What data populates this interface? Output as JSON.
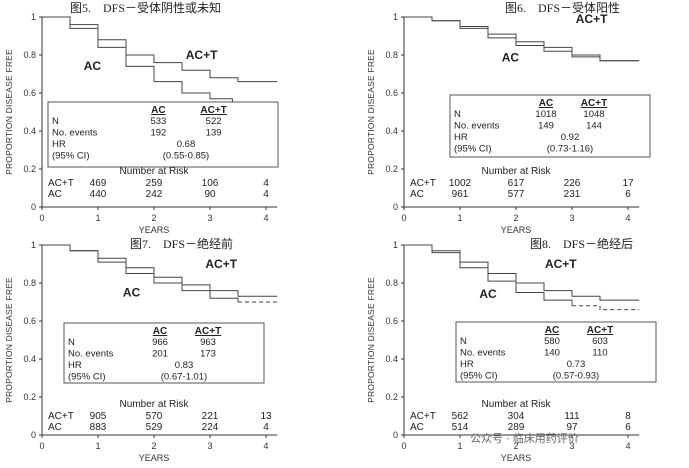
{
  "watermark": "公众号 · 临床用药评价",
  "chart_data": [
    {
      "type": "line",
      "title": "图5.　DFS－受体阴性或未知",
      "xlabel": "YEARS",
      "ylabel": "PROPORTION DISEASE FREE",
      "xlim": [
        0,
        4.2
      ],
      "ylim": [
        0,
        1
      ],
      "x_ticks": [
        "0",
        "1",
        "2",
        "3",
        "4"
      ],
      "y_ticks": [
        "0",
        "0.2",
        "0.4",
        "0.6",
        "0.8",
        "1"
      ],
      "series": [
        {
          "name": "AC+T",
          "label_pos": "upper",
          "points": [
            [
              0,
              1.0
            ],
            [
              0.5,
              0.96
            ],
            [
              1,
              0.88
            ],
            [
              1.5,
              0.8
            ],
            [
              2,
              0.76
            ],
            [
              2.5,
              0.72
            ],
            [
              3,
              0.68
            ],
            [
              3.5,
              0.66
            ],
            [
              4.2,
              0.66
            ]
          ]
        },
        {
          "name": "AC",
          "label_pos": "lower",
          "points": [
            [
              0,
              1.0
            ],
            [
              0.5,
              0.94
            ],
            [
              1,
              0.84
            ],
            [
              1.5,
              0.74
            ],
            [
              2,
              0.66
            ],
            [
              2.5,
              0.6
            ],
            [
              3,
              0.57
            ],
            [
              3.4,
              0.55
            ],
            [
              4.2,
              0.55
            ]
          ],
          "dash_from": 3.5
        }
      ],
      "stats": {
        "headers": [
          "AC",
          "AC+T"
        ],
        "rows": [
          {
            "label": "N",
            "ac": "533",
            "act": "522"
          },
          {
            "label": "No. events",
            "ac": "192",
            "act": "139"
          },
          {
            "label": "HR",
            "value": "0.68"
          },
          {
            "label": "(95% CI)",
            "value": "(0.55-0.85)"
          }
        ]
      },
      "risk": {
        "title": "Number at Risk",
        "rows": [
          {
            "label": "AC+T",
            "values": [
              "469",
              "259",
              "106",
              "4"
            ]
          },
          {
            "label": "AC",
            "values": [
              "440",
              "242",
              "90",
              "4"
            ]
          }
        ]
      }
    },
    {
      "type": "line",
      "title": "图6.　DFS－受体阳性",
      "xlabel": "YEARS",
      "ylabel": "PROPORTION DISEASE FREE",
      "xlim": [
        0,
        4.2
      ],
      "ylim": [
        0,
        1
      ],
      "x_ticks": [
        "0",
        "1",
        "2",
        "3",
        "4"
      ],
      "y_ticks": [
        "0",
        "0.2",
        "0.4",
        "0.6",
        "0.8",
        "1"
      ],
      "series": [
        {
          "name": "AC+T",
          "label_pos": "upper",
          "points": [
            [
              0,
              1.0
            ],
            [
              0.5,
              0.98
            ],
            [
              1,
              0.95
            ],
            [
              1.5,
              0.91
            ],
            [
              2,
              0.87
            ],
            [
              2.5,
              0.84
            ],
            [
              3,
              0.8
            ],
            [
              3.5,
              0.77
            ],
            [
              4.2,
              0.77
            ]
          ]
        },
        {
          "name": "AC",
          "label_pos": "lower",
          "points": [
            [
              0,
              1.0
            ],
            [
              0.5,
              0.98
            ],
            [
              1,
              0.94
            ],
            [
              1.5,
              0.89
            ],
            [
              2,
              0.85
            ],
            [
              2.5,
              0.82
            ],
            [
              3,
              0.79
            ],
            [
              3.5,
              0.77
            ],
            [
              4.2,
              0.77
            ]
          ]
        }
      ],
      "stats": {
        "headers": [
          "AC",
          "AC+T"
        ],
        "rows": [
          {
            "label": "N",
            "ac": "1018",
            "act": "1048"
          },
          {
            "label": "No. events",
            "ac": "149",
            "act": "144"
          },
          {
            "label": "HR",
            "value": "0.92"
          },
          {
            "label": "(95% CI)",
            "value": "(0.73-1.16)"
          }
        ]
      },
      "risk": {
        "title": "Number at Risk",
        "rows": [
          {
            "label": "AC+T",
            "values": [
              "1002",
              "617",
              "226",
              "17"
            ]
          },
          {
            "label": "AC",
            "values": [
              "961",
              "577",
              "231",
              "6"
            ]
          }
        ]
      }
    },
    {
      "type": "line",
      "title": "图7.　DFS－绝经前",
      "xlabel": "YEARS",
      "ylabel": "PROPORTION DISEASE FREE",
      "xlim": [
        0,
        4.2
      ],
      "ylim": [
        0,
        1
      ],
      "x_ticks": [
        "0",
        "1",
        "2",
        "3",
        "4"
      ],
      "y_ticks": [
        "0",
        "0.2",
        "0.4",
        "0.6",
        "0.8",
        "1"
      ],
      "series": [
        {
          "name": "AC+T",
          "label_pos": "upper",
          "points": [
            [
              0,
              1.0
            ],
            [
              0.5,
              0.97
            ],
            [
              1,
              0.93
            ],
            [
              1.5,
              0.88
            ],
            [
              2,
              0.83
            ],
            [
              2.5,
              0.79
            ],
            [
              3,
              0.76
            ],
            [
              3.5,
              0.73
            ],
            [
              4.2,
              0.73
            ]
          ]
        },
        {
          "name": "AC",
          "label_pos": "lower",
          "points": [
            [
              0,
              1.0
            ],
            [
              0.5,
              0.97
            ],
            [
              1,
              0.91
            ],
            [
              1.5,
              0.85
            ],
            [
              2,
              0.8
            ],
            [
              2.5,
              0.76
            ],
            [
              3,
              0.72
            ],
            [
              3.5,
              0.7
            ],
            [
              4.2,
              0.7
            ]
          ],
          "dash_from": 3.5
        }
      ],
      "stats": {
        "headers": [
          "AC",
          "AC+T"
        ],
        "rows": [
          {
            "label": "N",
            "ac": "966",
            "act": "963"
          },
          {
            "label": "No. events",
            "ac": "201",
            "act": "173"
          },
          {
            "label": "HR",
            "value": "0.83"
          },
          {
            "label": "(95% CI)",
            "value": "(0.67-1.01)"
          }
        ]
      },
      "risk": {
        "title": "Number at Risk",
        "rows": [
          {
            "label": "AC+T",
            "values": [
              "905",
              "570",
              "221",
              "13"
            ]
          },
          {
            "label": "AC",
            "values": [
              "883",
              "529",
              "224",
              "4"
            ]
          }
        ]
      }
    },
    {
      "type": "line",
      "title": "图8.　DFS－绝经后",
      "xlabel": "YEARS",
      "ylabel": "PROPORTION DISEASE FREE",
      "xlim": [
        0,
        4.2
      ],
      "ylim": [
        0,
        1
      ],
      "x_ticks": [
        "0",
        "1",
        "2",
        "3",
        "4"
      ],
      "y_ticks": [
        "0",
        "0.2",
        "0.4",
        "0.6",
        "0.8",
        "1"
      ],
      "series": [
        {
          "name": "AC+T",
          "label_pos": "upper",
          "points": [
            [
              0,
              1.0
            ],
            [
              0.5,
              0.97
            ],
            [
              1,
              0.91
            ],
            [
              1.5,
              0.85
            ],
            [
              2,
              0.8
            ],
            [
              2.5,
              0.76
            ],
            [
              3,
              0.73
            ],
            [
              3.5,
              0.71
            ],
            [
              4.2,
              0.71
            ]
          ]
        },
        {
          "name": "AC",
          "label_pos": "lower",
          "points": [
            [
              0,
              1.0
            ],
            [
              0.5,
              0.96
            ],
            [
              1,
              0.88
            ],
            [
              1.5,
              0.81
            ],
            [
              2,
              0.75
            ],
            [
              2.5,
              0.71
            ],
            [
              3,
              0.68
            ],
            [
              3.5,
              0.66
            ],
            [
              4.2,
              0.66
            ]
          ],
          "dash_from": 3.0
        }
      ],
      "stats": {
        "headers": [
          "AC",
          "AC+T"
        ],
        "rows": [
          {
            "label": "N",
            "ac": "580",
            "act": "603"
          },
          {
            "label": "No. events",
            "ac": "140",
            "act": "110"
          },
          {
            "label": "HR",
            "value": "0.73"
          },
          {
            "label": "(95% CI)",
            "value": "(0.57-0.93)"
          }
        ]
      },
      "risk": {
        "title": "Number at Risk",
        "rows": [
          {
            "label": "AC+T",
            "values": [
              "562",
              "304",
              "111",
              "8"
            ]
          },
          {
            "label": "AC",
            "values": [
              "514",
              "289",
              "97",
              "6"
            ]
          }
        ]
      }
    }
  ]
}
